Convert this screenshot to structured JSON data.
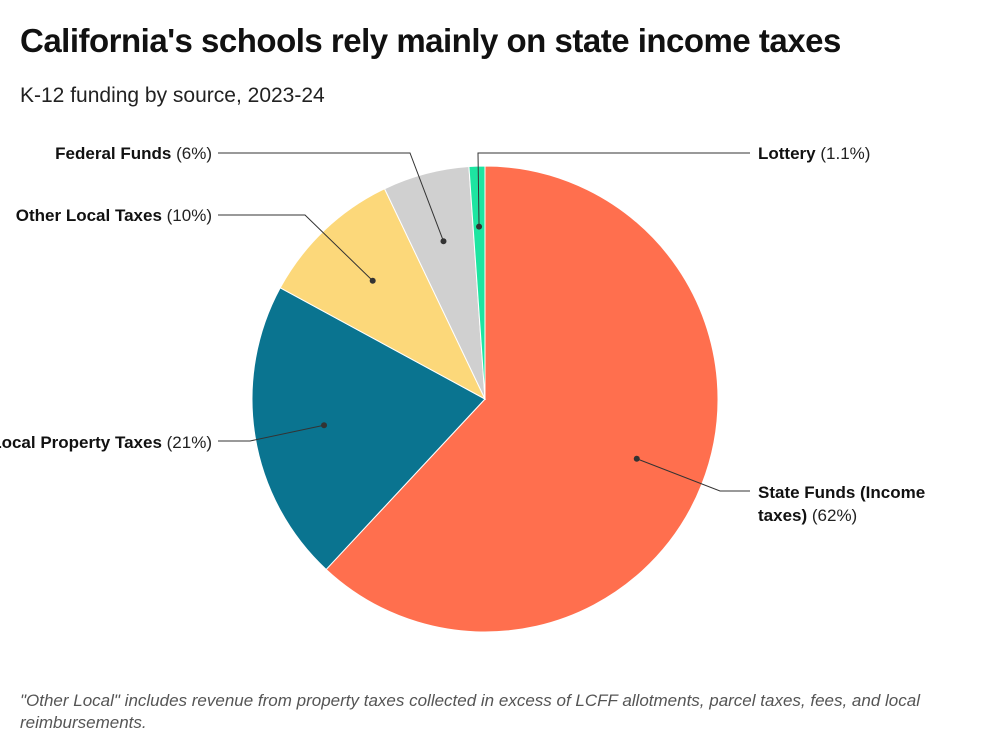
{
  "title": "California's schools rely mainly on state income taxes",
  "subtitle": "K-12 funding by source, 2023-24",
  "note": "\"Other Local\" includes revenue from property taxes collected in excess of LCFF allotments, parcel taxes, fees, and local reimbursements.",
  "chart_data": {
    "type": "pie",
    "categories": [
      "State Funds (Income taxes)",
      "Local Property Taxes",
      "Other Local Taxes",
      "Federal Funds",
      "Lottery"
    ],
    "values": [
      62,
      21,
      10,
      6,
      1.1
    ],
    "value_labels": [
      "(62%)",
      "(21%)",
      "(10%)",
      "(6%)",
      "(1.1%)"
    ],
    "colors": [
      "#ff6f4e",
      "#0a7490",
      "#fcd87a",
      "#d0d0d0",
      "#1de5a1"
    ]
  }
}
